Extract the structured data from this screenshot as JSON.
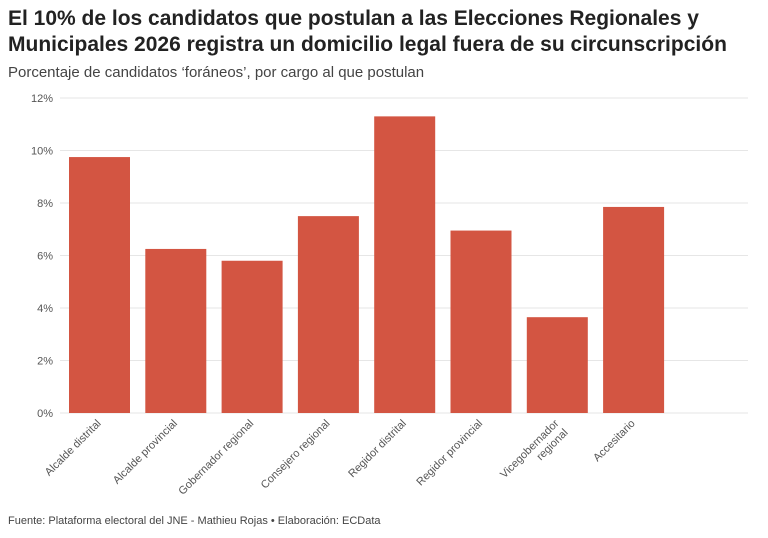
{
  "title": "El 10% de los candidatos que postulan a las Elecciones Regionales y Municipales 2026 registra un domicilio legal fuera de su circunscripción",
  "subtitle": "Porcentaje de candidatos ‘foráneos’, por cargo al que postulan",
  "source": "Fuente: Plataforma electoral del JNE - Mathieu Rojas • Elaboración: ECData",
  "colors": {
    "bar": "#d35542",
    "grid": "#e6e6e6"
  },
  "chart_data": {
    "type": "bar",
    "categories": [
      [
        "Alcalde distrital"
      ],
      [
        "Alcalde provincial"
      ],
      [
        "Gobernador regional"
      ],
      [
        "Consejero regional"
      ],
      [
        "Regidor distrital"
      ],
      [
        "Regidor provincial"
      ],
      [
        "Vicegobernador",
        "regional"
      ],
      [
        "Accesitario"
      ]
    ],
    "values": [
      9.75,
      6.25,
      5.8,
      7.5,
      11.3,
      6.95,
      3.65,
      7.85
    ],
    "ylim": [
      0,
      12
    ],
    "yticks": [
      "0%",
      "2%",
      "4%",
      "6%",
      "8%",
      "10%",
      "12%"
    ],
    "grid": true
  }
}
